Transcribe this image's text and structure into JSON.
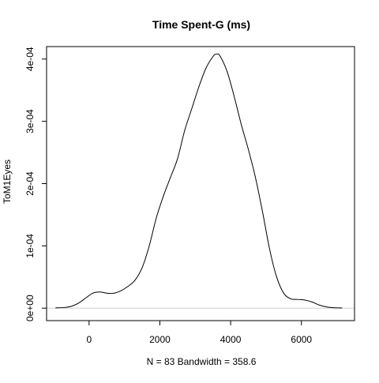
{
  "chart_data": {
    "type": "line",
    "title": "Time Spent-G (ms)",
    "xlabel": "N = 83   Bandwidth = 358.6",
    "ylabel": "ToM1Eyes",
    "xlim": [
      -1200,
      7500
    ],
    "ylim": [
      -2e-05,
      0.00042
    ],
    "x_ticks": [
      {
        "value": 0,
        "label": "0"
      },
      {
        "value": 2000,
        "label": "2000"
      },
      {
        "value": 4000,
        "label": "4000"
      },
      {
        "value": 6000,
        "label": "6000"
      }
    ],
    "y_ticks": [
      {
        "value": 0,
        "label": "0e+00"
      },
      {
        "value": 0.0001,
        "label": "1e-04"
      },
      {
        "value": 0.0002,
        "label": "2e-04"
      },
      {
        "value": 0.0003,
        "label": "3e-04"
      },
      {
        "value": 0.0004,
        "label": "4e-04"
      }
    ],
    "series": [
      {
        "color": "#000000",
        "x": [
          -950,
          -700,
          -500,
          -300,
          -100,
          100,
          300,
          500,
          700,
          900,
          1100,
          1300,
          1500,
          1700,
          1900,
          2100,
          2300,
          2500,
          2700,
          2900,
          3100,
          3300,
          3500,
          3600,
          3700,
          3900,
          4100,
          4300,
          4500,
          4700,
          4900,
          5100,
          5300,
          5500,
          5700,
          5900,
          6100,
          6300,
          6500,
          6700,
          6900,
          7150
        ],
        "y": [
          5e-07,
          1e-06,
          3e-06,
          8e-06,
          1.6e-05,
          2.4e-05,
          2.6e-05,
          2.4e-05,
          2.4e-05,
          2.8e-05,
          3.5e-05,
          4.5e-05,
          6.5e-05,
          0.0001,
          0.000145,
          0.00018,
          0.00021,
          0.00024,
          0.000285,
          0.00032,
          0.000355,
          0.000385,
          0.000404,
          0.000408,
          0.000405,
          0.00038,
          0.00034,
          0.000295,
          0.000255,
          0.00021,
          0.000155,
          9.5e-05,
          5e-05,
          2.4e-05,
          1.5e-05,
          1.4e-05,
          1.3e-05,
          1e-05,
          5e-06,
          2e-06,
          8e-07,
          3e-07
        ]
      }
    ],
    "grid": false,
    "legend": "none",
    "zero_line": true,
    "zero_line_color": "#d0d0d0"
  }
}
